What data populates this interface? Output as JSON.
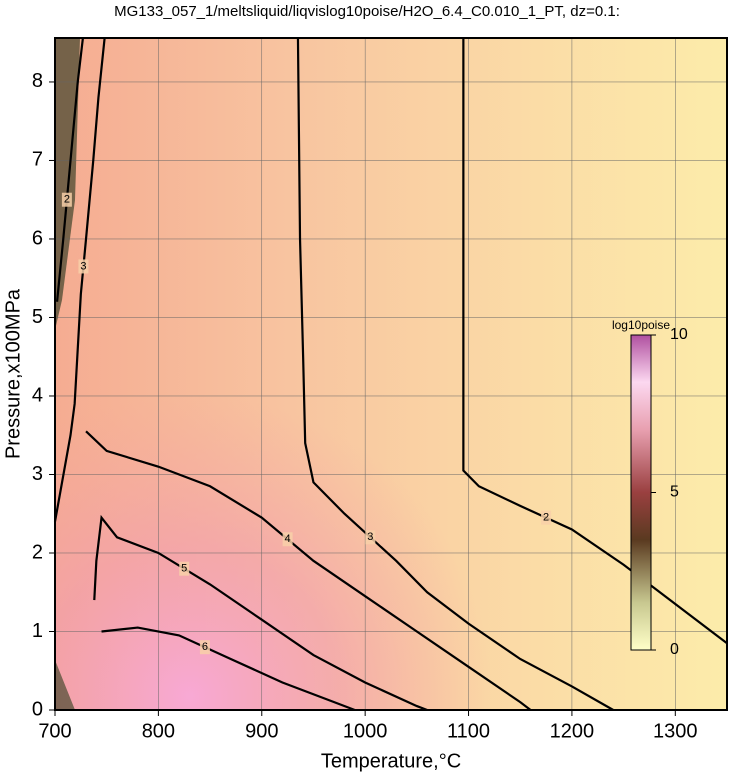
{
  "chart_data": {
    "type": "contour",
    "title": "MG133_057_1/meltsliquid/liqvislog10poise/H2O_6.4_C0.010_1_PT, dz=0.1:",
    "x_label": "Temperature,°C",
    "y_label": "Pressure,x100MPa",
    "xlim": [
      700,
      1350
    ],
    "ylim": [
      0,
      8.56
    ],
    "xticks": [
      700,
      800,
      900,
      1000,
      1100,
      1200,
      1300
    ],
    "yticks": [
      0,
      1,
      2,
      3,
      4,
      5,
      6,
      7,
      8
    ],
    "grid": true,
    "contours": [
      {
        "level": 2,
        "x": [
          1095,
          1095,
          1110,
          1150,
          1200,
          1250,
          1300,
          1350
        ],
        "y": [
          8.56,
          3.05,
          2.85,
          2.6,
          2.3,
          1.85,
          1.35,
          0.85
        ]
      },
      {
        "level": 3,
        "x": [
          935,
          937,
          940,
          942,
          950,
          980,
          1030,
          1060,
          1100,
          1150,
          1200,
          1240
        ],
        "y": [
          8.56,
          6,
          4.5,
          3.4,
          2.9,
          2.5,
          1.9,
          1.5,
          1.1,
          0.65,
          0.3,
          0
        ]
      },
      {
        "level": 4,
        "x": [
          730,
          750,
          800,
          850,
          900,
          950,
          1000,
          1050,
          1100,
          1150,
          1160
        ],
        "y": [
          3.55,
          3.3,
          3.1,
          2.85,
          2.45,
          1.9,
          1.45,
          1.0,
          0.55,
          0.1,
          0
        ]
      },
      {
        "level": 5,
        "x": [
          738,
          740,
          745,
          760,
          800,
          850,
          900,
          950,
          1000,
          1050,
          1060
        ],
        "y": [
          1.4,
          1.9,
          2.45,
          2.2,
          2.0,
          1.6,
          1.15,
          0.7,
          0.35,
          0.05,
          0
        ]
      },
      {
        "level": 6,
        "x": [
          745,
          780,
          820,
          870,
          920,
          970,
          990
        ],
        "y": [
          1.0,
          1.05,
          0.95,
          0.65,
          0.35,
          0.1,
          0
        ]
      },
      {
        "level": 3,
        "x": [
          700,
          715,
          719,
          725,
          730,
          737,
          742,
          748
        ],
        "y": [
          2.4,
          3.5,
          3.9,
          5.3,
          6,
          7,
          7.8,
          8.56
        ]
      },
      {
        "level": 2,
        "x": [
          702,
          708,
          715,
          722,
          727
        ],
        "y": [
          5.2,
          6,
          7,
          8,
          8.56
        ]
      }
    ],
    "colorbar": {
      "label": "log10poise",
      "lim": [
        0,
        10
      ],
      "ticks": [
        0,
        5,
        10
      ]
    }
  }
}
